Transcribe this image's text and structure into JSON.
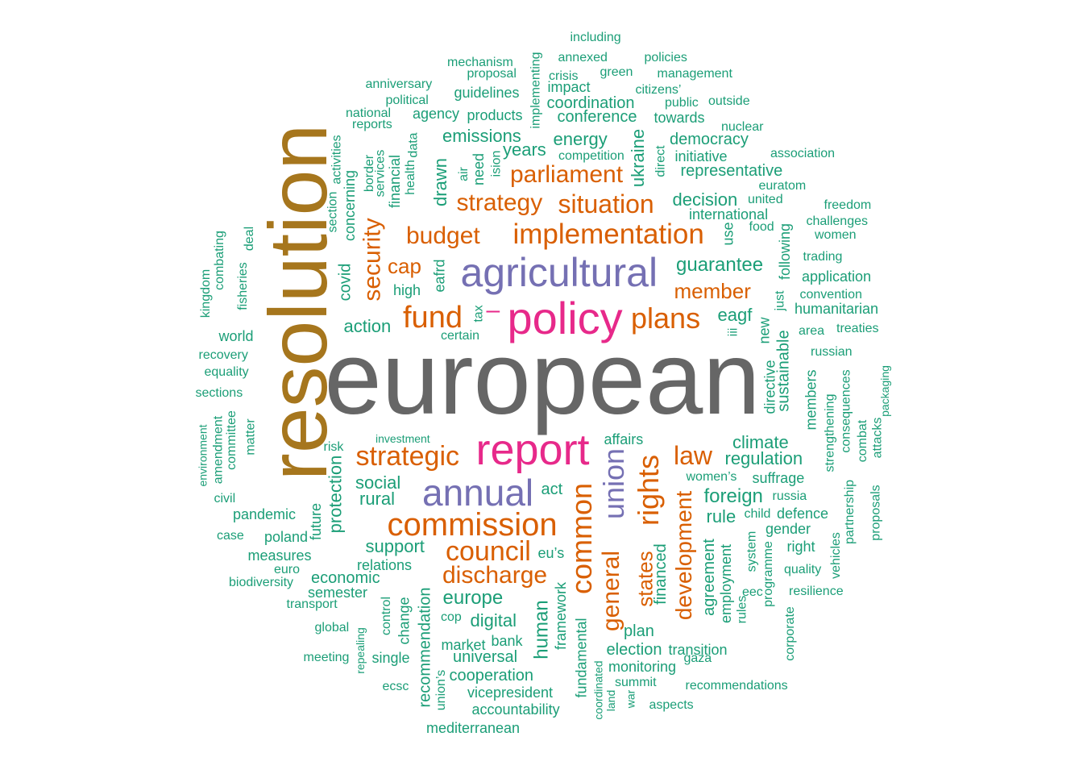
{
  "colors": {
    "grey": "#666666",
    "gold": "#a6761d",
    "purple": "#7570b3",
    "pink": "#e7298a",
    "orange": "#d95f02",
    "teal": "#1b9e77"
  },
  "words": [
    {
      "text": "european",
      "color": "grey"
    },
    {
      "text": "resolution",
      "color": "gold"
    },
    {
      "text": "agricultural",
      "color": "purple"
    },
    {
      "text": "policy",
      "color": "pink"
    },
    {
      "text": "report",
      "color": "pink"
    },
    {
      "text": "annual",
      "color": "purple"
    },
    {
      "text": "union",
      "color": "purple"
    },
    {
      "text": "commission",
      "color": "orange"
    },
    {
      "text": "implementation",
      "color": "orange"
    },
    {
      "text": "situation",
      "color": "orange"
    },
    {
      "text": "parliament",
      "color": "orange"
    },
    {
      "text": "strategy",
      "color": "orange"
    },
    {
      "text": "budget",
      "color": "orange"
    },
    {
      "text": "fund",
      "color": "orange"
    },
    {
      "text": "plans",
      "color": "orange"
    },
    {
      "text": "strategic",
      "color": "orange"
    },
    {
      "text": "council",
      "color": "orange"
    },
    {
      "text": "discharge",
      "color": "orange"
    },
    {
      "text": "common",
      "color": "orange"
    },
    {
      "text": "rights",
      "color": "orange"
    },
    {
      "text": "law",
      "color": "orange"
    },
    {
      "text": "general",
      "color": "orange"
    },
    {
      "text": "development",
      "color": "orange"
    },
    {
      "text": "states",
      "color": "orange"
    },
    {
      "text": "member",
      "color": "orange"
    },
    {
      "text": "security",
      "color": "orange"
    },
    {
      "text": "cap",
      "color": "orange"
    },
    {
      "text": "–",
      "color": "pink"
    },
    {
      "text": "including",
      "color": "teal"
    },
    {
      "text": "annexed",
      "color": "teal"
    },
    {
      "text": "policies",
      "color": "teal"
    },
    {
      "text": "mechanism",
      "color": "teal"
    },
    {
      "text": "implementing",
      "color": "teal"
    },
    {
      "text": "proposal",
      "color": "teal"
    },
    {
      "text": "crisis",
      "color": "teal"
    },
    {
      "text": "green",
      "color": "teal"
    },
    {
      "text": "management",
      "color": "teal"
    },
    {
      "text": "anniversary",
      "color": "teal"
    },
    {
      "text": "impact",
      "color": "teal"
    },
    {
      "text": "citizens’",
      "color": "teal"
    },
    {
      "text": "political",
      "color": "teal"
    },
    {
      "text": "guidelines",
      "color": "teal"
    },
    {
      "text": "public",
      "color": "teal"
    },
    {
      "text": "outside",
      "color": "teal"
    },
    {
      "text": "coordination",
      "color": "teal"
    },
    {
      "text": "national",
      "color": "teal"
    },
    {
      "text": "agency",
      "color": "teal"
    },
    {
      "text": "products",
      "color": "teal"
    },
    {
      "text": "conference",
      "color": "teal"
    },
    {
      "text": "towards",
      "color": "teal"
    },
    {
      "text": "reports",
      "color": "teal"
    },
    {
      "text": "nuclear",
      "color": "teal"
    },
    {
      "text": "emissions",
      "color": "teal"
    },
    {
      "text": "energy",
      "color": "teal"
    },
    {
      "text": "democracy",
      "color": "teal"
    },
    {
      "text": "years",
      "color": "teal"
    },
    {
      "text": "competition",
      "color": "teal"
    },
    {
      "text": "initiative",
      "color": "teal"
    },
    {
      "text": "association",
      "color": "teal"
    },
    {
      "text": "representative",
      "color": "teal"
    },
    {
      "text": "activities",
      "color": "teal"
    },
    {
      "text": "border",
      "color": "teal"
    },
    {
      "text": "services",
      "color": "teal"
    },
    {
      "text": "financial",
      "color": "teal"
    },
    {
      "text": "health",
      "color": "teal"
    },
    {
      "text": "data",
      "color": "teal"
    },
    {
      "text": "drawn",
      "color": "teal"
    },
    {
      "text": "air",
      "color": "teal"
    },
    {
      "text": "need",
      "color": "teal"
    },
    {
      "text": "ision",
      "color": "teal"
    },
    {
      "text": "ukraine",
      "color": "teal"
    },
    {
      "text": "direct",
      "color": "teal"
    },
    {
      "text": "euratom",
      "color": "teal"
    },
    {
      "text": "concerning",
      "color": "teal"
    },
    {
      "text": "section",
      "color": "teal"
    },
    {
      "text": "decision",
      "color": "teal"
    },
    {
      "text": "united",
      "color": "teal"
    },
    {
      "text": "freedom",
      "color": "teal"
    },
    {
      "text": "international",
      "color": "teal"
    },
    {
      "text": "challenges",
      "color": "teal"
    },
    {
      "text": "food",
      "color": "teal"
    },
    {
      "text": "women",
      "color": "teal"
    },
    {
      "text": "deal",
      "color": "teal"
    },
    {
      "text": "use",
      "color": "teal"
    },
    {
      "text": "following",
      "color": "teal"
    },
    {
      "text": "trading",
      "color": "teal"
    },
    {
      "text": "combating",
      "color": "teal"
    },
    {
      "text": "covid",
      "color": "teal"
    },
    {
      "text": "eafrd",
      "color": "teal"
    },
    {
      "text": "guarantee",
      "color": "teal"
    },
    {
      "text": "application",
      "color": "teal"
    },
    {
      "text": "kingdom",
      "color": "teal"
    },
    {
      "text": "fisheries",
      "color": "teal"
    },
    {
      "text": "high",
      "color": "teal"
    },
    {
      "text": "convention",
      "color": "teal"
    },
    {
      "text": "just",
      "color": "teal"
    },
    {
      "text": "humanitarian",
      "color": "teal"
    },
    {
      "text": "tax",
      "color": "teal"
    },
    {
      "text": "eagf",
      "color": "teal"
    },
    {
      "text": "world",
      "color": "teal"
    },
    {
      "text": "action",
      "color": "teal"
    },
    {
      "text": "certain",
      "color": "teal"
    },
    {
      "text": "iii",
      "color": "teal"
    },
    {
      "text": "new",
      "color": "teal"
    },
    {
      "text": "area",
      "color": "teal"
    },
    {
      "text": "treaties",
      "color": "teal"
    },
    {
      "text": "recovery",
      "color": "teal"
    },
    {
      "text": "russian",
      "color": "teal"
    },
    {
      "text": "equality",
      "color": "teal"
    },
    {
      "text": "sections",
      "color": "teal"
    },
    {
      "text": "sustainable",
      "color": "teal"
    },
    {
      "text": "directive",
      "color": "teal"
    },
    {
      "text": "members",
      "color": "teal"
    },
    {
      "text": "consequences",
      "color": "teal"
    },
    {
      "text": "packaging",
      "color": "teal"
    },
    {
      "text": "environment",
      "color": "teal"
    },
    {
      "text": "amendment",
      "color": "teal"
    },
    {
      "text": "committee",
      "color": "teal"
    },
    {
      "text": "matter",
      "color": "teal"
    },
    {
      "text": "investment",
      "color": "teal"
    },
    {
      "text": "risk",
      "color": "teal"
    },
    {
      "text": "affairs",
      "color": "teal"
    },
    {
      "text": "climate",
      "color": "teal"
    },
    {
      "text": "strengthening",
      "color": "teal"
    },
    {
      "text": "combat",
      "color": "teal"
    },
    {
      "text": "attacks",
      "color": "teal"
    },
    {
      "text": "regulation",
      "color": "teal"
    },
    {
      "text": "social",
      "color": "teal"
    },
    {
      "text": "women’s",
      "color": "teal"
    },
    {
      "text": "suffrage",
      "color": "teal"
    },
    {
      "text": "civil",
      "color": "teal"
    },
    {
      "text": "rural",
      "color": "teal"
    },
    {
      "text": "act",
      "color": "teal"
    },
    {
      "text": "foreign",
      "color": "teal"
    },
    {
      "text": "russia",
      "color": "teal"
    },
    {
      "text": "partnership",
      "color": "teal"
    },
    {
      "text": "proposals",
      "color": "teal"
    },
    {
      "text": "pandemic",
      "color": "teal"
    },
    {
      "text": "protection",
      "color": "teal"
    },
    {
      "text": "future",
      "color": "teal"
    },
    {
      "text": "rule",
      "color": "teal"
    },
    {
      "text": "child",
      "color": "teal"
    },
    {
      "text": "defence",
      "color": "teal"
    },
    {
      "text": "case",
      "color": "teal"
    },
    {
      "text": "poland",
      "color": "teal"
    },
    {
      "text": "support",
      "color": "teal"
    },
    {
      "text": "system",
      "color": "teal"
    },
    {
      "text": "gender",
      "color": "teal"
    },
    {
      "text": "right",
      "color": "teal"
    },
    {
      "text": "measures",
      "color": "teal"
    },
    {
      "text": "eu’s",
      "color": "teal"
    },
    {
      "text": "relations",
      "color": "teal"
    },
    {
      "text": "vehicles",
      "color": "teal"
    },
    {
      "text": "euro",
      "color": "teal"
    },
    {
      "text": "financed",
      "color": "teal"
    },
    {
      "text": "agreement",
      "color": "teal"
    },
    {
      "text": "employment",
      "color": "teal"
    },
    {
      "text": "programme",
      "color": "teal"
    },
    {
      "text": "quality",
      "color": "teal"
    },
    {
      "text": "economic",
      "color": "teal"
    },
    {
      "text": "biodiversity",
      "color": "teal"
    },
    {
      "text": "semester",
      "color": "teal"
    },
    {
      "text": "eec",
      "color": "teal"
    },
    {
      "text": "resilience",
      "color": "teal"
    },
    {
      "text": "europe",
      "color": "teal"
    },
    {
      "text": "transport",
      "color": "teal"
    },
    {
      "text": "control",
      "color": "teal"
    },
    {
      "text": "change",
      "color": "teal"
    },
    {
      "text": "recommendation",
      "color": "teal"
    },
    {
      "text": "human",
      "color": "teal"
    },
    {
      "text": "framework",
      "color": "teal"
    },
    {
      "text": "fundamental",
      "color": "teal"
    },
    {
      "text": "rules",
      "color": "teal"
    },
    {
      "text": "corporate",
      "color": "teal"
    },
    {
      "text": "cop",
      "color": "teal"
    },
    {
      "text": "digital",
      "color": "teal"
    },
    {
      "text": "global",
      "color": "teal"
    },
    {
      "text": "plan",
      "color": "teal"
    },
    {
      "text": "repealing",
      "color": "teal"
    },
    {
      "text": "bank",
      "color": "teal"
    },
    {
      "text": "market",
      "color": "teal"
    },
    {
      "text": "election",
      "color": "teal"
    },
    {
      "text": "transition",
      "color": "teal"
    },
    {
      "text": "meeting",
      "color": "teal"
    },
    {
      "text": "single",
      "color": "teal"
    },
    {
      "text": "universal",
      "color": "teal"
    },
    {
      "text": "gaza",
      "color": "teal"
    },
    {
      "text": "monitoring",
      "color": "teal"
    },
    {
      "text": "coordinated",
      "color": "teal"
    },
    {
      "text": "union’s",
      "color": "teal"
    },
    {
      "text": "cooperation",
      "color": "teal"
    },
    {
      "text": "summit",
      "color": "teal"
    },
    {
      "text": "recommendations",
      "color": "teal"
    },
    {
      "text": "ecsc",
      "color": "teal"
    },
    {
      "text": "vicepresident",
      "color": "teal"
    },
    {
      "text": "land",
      "color": "teal"
    },
    {
      "text": "war",
      "color": "teal"
    },
    {
      "text": "aspects",
      "color": "teal"
    },
    {
      "text": "accountability",
      "color": "teal"
    },
    {
      "text": "mediterranean",
      "color": "teal"
    }
  ]
}
